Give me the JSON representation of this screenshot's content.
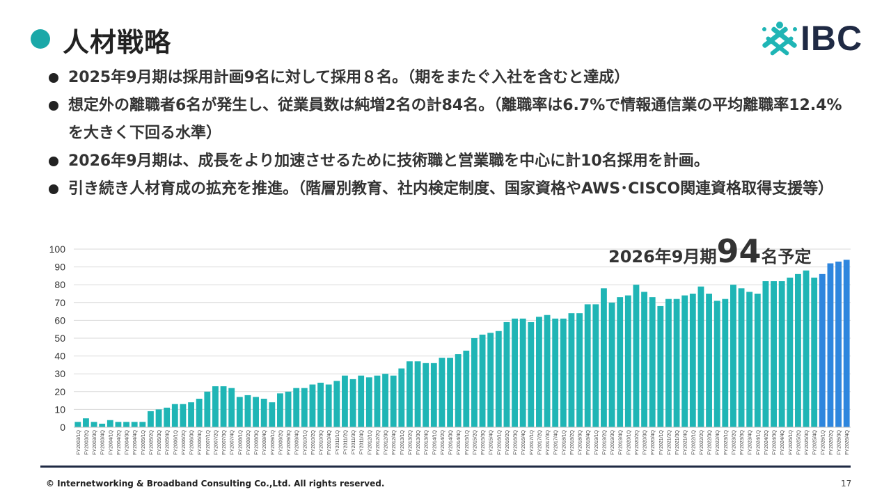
{
  "slide": {
    "title": "人材戦略",
    "logo_text": "IBC",
    "page_number": "17",
    "copyright": "© Internetworking & Broadband Consulting Co.,Ltd. All rights reserved.",
    "bullets": [
      "2025年9月期は採用計画9名に対して採用８名。（期をまたぐ入社を含むと達成）",
      "想定外の離職者6名が発生し、従業員数は純増2名の計84名。（離職率は6.7%で情報通信業の平均離職率12.4%を大きく下回る水準）",
      "2026年9月期は、成長をより加速させるために技術職と営業職を中心に計10名採用を計画。",
      "引き続き人材育成の拡充を推進。（階層別教育、社内検定制度、国家資格やAWS･CISCO関連資格取得支援等）"
    ],
    "forecast": {
      "prefix": "2026年9月期",
      "value": "94",
      "suffix": "名予定"
    },
    "colors": {
      "accent": "#1aa8a8",
      "bar": "#1fb5b5",
      "forecast_bar": "#2e86de",
      "navy": "#1f2a44"
    },
    "icons": [
      "bullet-dot-icon",
      "ibc-logo-icon"
    ]
  },
  "chart_data": {
    "type": "bar",
    "title": "",
    "xlabel": "",
    "ylabel": "",
    "ylim": [
      0,
      100
    ],
    "yticks": [
      0,
      10,
      20,
      30,
      40,
      50,
      60,
      70,
      80,
      90,
      100
    ],
    "grid": true,
    "forecast_from": "FY2026/1Q",
    "categories": [
      "FY2003/1Q",
      "FY2003/2Q",
      "FY2003/3Q",
      "FY2003/4Q",
      "FY2004/1Q",
      "FY2004/2Q",
      "FY2004/3Q",
      "FY2004/4Q",
      "FY2005/1Q",
      "FY2005/2Q",
      "FY2005/3Q",
      "FY2005/4Q",
      "FY2006/1Q",
      "FY2006/2Q",
      "FY2006/3Q",
      "FY2006/4Q",
      "FY2007/1Q",
      "FY2007/2Q",
      "FY2007/3Q",
      "FY2007/4Q",
      "FY2008/1Q",
      "FY2008/2Q",
      "FY2008/3Q",
      "FY2008/4Q",
      "FY2009/1Q",
      "FY2009/2Q",
      "FY2009/3Q",
      "FY2009/4Q",
      "FY2010/1Q",
      "FY2010/2Q",
      "FY2010/3Q",
      "FY2010/4Q",
      "FY2011/1Q",
      "FY2011/2Q",
      "FY2011/3Q",
      "FY2011/4Q",
      "FY2012/1Q",
      "FY2012/2Q",
      "FY2012/3Q",
      "FY2012/4Q",
      "FY2013/1Q",
      "FY2013/2Q",
      "FY2013/3Q",
      "FY2013/4Q",
      "FY2014/1Q",
      "FY2014/2Q",
      "FY2014/3Q",
      "FY2014/4Q",
      "FY2015/1Q",
      "FY2015/2Q",
      "FY2015/3Q",
      "FY2015/4Q",
      "FY2016/1Q",
      "FY2016/2Q",
      "FY2016/3Q",
      "FY2016/4Q",
      "FY2017/1Q",
      "FY2017/2Q",
      "FY2017/3Q",
      "FY2017/4Q",
      "FY2018/1Q",
      "FY2018/2Q",
      "FY2018/3Q",
      "FY2018/4Q",
      "FY2019/1Q",
      "FY2019/2Q",
      "FY2019/3Q",
      "FY2019/4Q",
      "FY2020/1Q",
      "FY2020/2Q",
      "FY2020/3Q",
      "FY2020/4Q",
      "FY2021/1Q",
      "FY2021/2Q",
      "FY2021/3Q",
      "FY2021/4Q",
      "FY2022/1Q",
      "FY2022/2Q",
      "FY2022/3Q",
      "FY2022/4Q",
      "FY2023/1Q",
      "FY2023/2Q",
      "FY2023/3Q",
      "FY2023/4Q",
      "FY2024/1Q",
      "FY2024/2Q",
      "FY2024/3Q",
      "FY2024/4Q",
      "FY2025/1Q",
      "FY2025/2Q",
      "FY2025/3Q",
      "FY2025/4Q",
      "FY2026/1Q",
      "FY2026/2Q",
      "FY2026/3Q",
      "FY2026/4Q"
    ],
    "values": [
      3,
      5,
      3,
      2,
      4,
      3,
      3,
      3,
      3,
      9,
      10,
      11,
      13,
      13,
      14,
      16,
      20,
      23,
      23,
      22,
      17,
      18,
      17,
      16,
      14,
      19,
      20,
      22,
      22,
      24,
      25,
      24,
      26,
      29,
      27,
      29,
      28,
      29,
      30,
      29,
      33,
      37,
      37,
      36,
      36,
      39,
      39,
      41,
      43,
      50,
      52,
      53,
      54,
      59,
      61,
      61,
      59,
      62,
      63,
      61,
      61,
      64,
      64,
      69,
      69,
      78,
      70,
      73,
      74,
      80,
      76,
      73,
      68,
      72,
      72,
      74,
      75,
      79,
      75,
      71,
      72,
      80,
      78,
      76,
      75,
      82,
      82,
      82,
      84,
      86,
      88,
      84,
      86,
      92,
      93,
      94
    ]
  }
}
